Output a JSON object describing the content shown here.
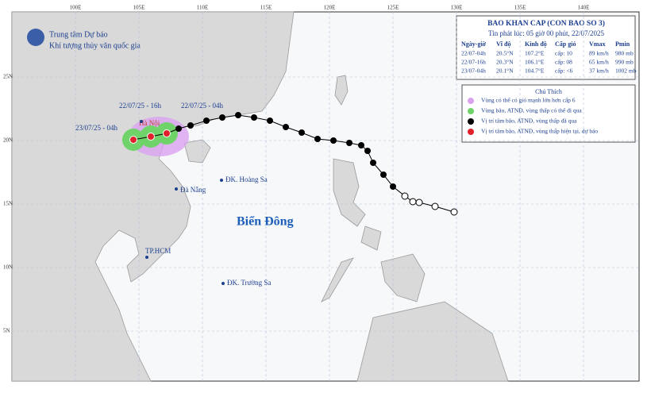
{
  "logo": {
    "line1": "Trung tâm Dự báo",
    "line2": "Khí tượng thủy văn quốc gia"
  },
  "bulletin": {
    "title": "BAO KHAN CAP (CON BAO SO 3)",
    "issued": "Tin phát lúc: 05 giờ 00 phút, 22/07/2025",
    "columns": [
      "Ngày-giờ",
      "Vĩ độ",
      "Kinh độ",
      "Cấp gió",
      "Vmax",
      "Pmin"
    ],
    "rows": [
      [
        "22/07-04h",
        "20.5°N",
        "107.2°E",
        "cấp: 10",
        "89 km/h",
        "980 mb"
      ],
      [
        "22/07-16h",
        "20.3°N",
        "106.1°E",
        "cấp: 08",
        "65 km/h",
        "990 mb"
      ],
      [
        "23/07-04h",
        "20.1°N",
        "104.7°E",
        "cấp: <6",
        "37 km/h",
        "1002 mb"
      ]
    ]
  },
  "legend": {
    "title": "Chú Thích",
    "items": [
      "Vùng có thể có gió mạnh lớn hơn cấp 6",
      "Vùng bão, ATNĐ, vùng thấp có thể đi qua",
      "Vị trí tâm bão, ATNĐ, vùng thấp đã qua",
      "Vị trí tâm bão, ATNĐ, vùng thấp hiện tại, dự báo"
    ]
  },
  "map": {
    "lon_labels": [
      "100E",
      "105E",
      "110E",
      "115E",
      "120E",
      "125E",
      "130E",
      "135E",
      "140E"
    ],
    "lat_labels": [
      "25N",
      "20N",
      "15N",
      "10N",
      "5N"
    ],
    "labels": [
      "22/07/25 - 16h",
      "22/07/25 - 04h",
      "23/07/25 - 04h",
      "Hà Nội",
      "Đà Nẵng",
      "ĐK. Hoàng Sa",
      "Biển Đông",
      "TP.HCM",
      "ĐK. Trường Sa"
    ]
  }
}
